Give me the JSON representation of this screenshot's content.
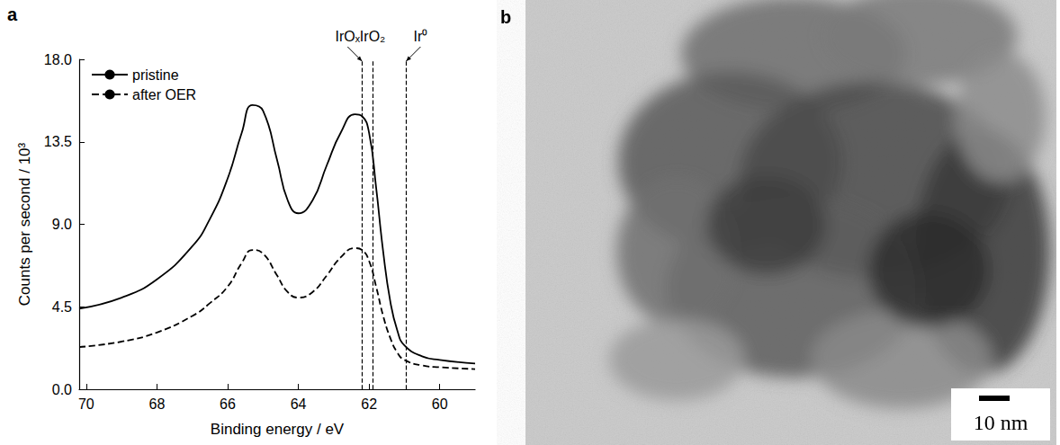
{
  "chart_data": {
    "type": "line",
    "panel_label": "a",
    "x_label": "Binding energy / eV",
    "y_label": "Counts per second / 10³",
    "xlim": [
      70.2,
      59
    ],
    "xticks": [
      70,
      68,
      66,
      64,
      62,
      60
    ],
    "ylim": [
      0,
      18
    ],
    "yticks": [
      {
        "value": 0,
        "label": "0.0"
      },
      {
        "value": 4.5,
        "label": "4.5"
      },
      {
        "value": 9,
        "label": "9.0"
      },
      {
        "value": 13.5,
        "label": "13.5"
      },
      {
        "value": 18,
        "label": "18.0"
      }
    ],
    "grid": false,
    "legend": "upper left",
    "x": [
      70.2,
      69,
      68,
      67,
      66.5,
      66,
      65.6,
      65.3,
      65.0,
      64.6,
      64.3,
      64.0,
      63.6,
      63.2,
      62.8,
      62.4,
      62.2,
      62.0,
      61.8,
      61.6,
      61.4,
      61.2,
      61.0,
      60.5,
      60,
      59
    ],
    "series": [
      {
        "name": "pristine",
        "color": "#000000",
        "line_style": "solid",
        "values": [
          4.4,
          5.0,
          6.0,
          7.8,
          9.3,
          11.5,
          14.0,
          15.5,
          15.2,
          12.5,
          10.3,
          9.6,
          10.3,
          12.2,
          14.0,
          15.0,
          14.9,
          14.0,
          11.0,
          7.5,
          4.8,
          3.2,
          2.4,
          1.8,
          1.6,
          1.4
        ]
      },
      {
        "name": "after OER",
        "color": "#000000",
        "line_style": "dashed",
        "values": [
          2.3,
          2.6,
          3.1,
          4.0,
          4.7,
          5.6,
          6.9,
          7.6,
          7.4,
          6.2,
          5.3,
          5.0,
          5.3,
          6.2,
          7.2,
          7.7,
          7.6,
          7.0,
          5.6,
          4.0,
          2.8,
          2.0,
          1.6,
          1.3,
          1.2,
          1.1
        ]
      }
    ],
    "annotations": [
      {
        "text": "IrOₓ",
        "x": 62.2
      },
      {
        "text": "IrO₂",
        "x": 61.9
      },
      {
        "text": "Ir⁰",
        "x": 60.95
      }
    ]
  },
  "image_panel": {
    "panel_label": "b",
    "scale_bar_label": "10 nm"
  }
}
